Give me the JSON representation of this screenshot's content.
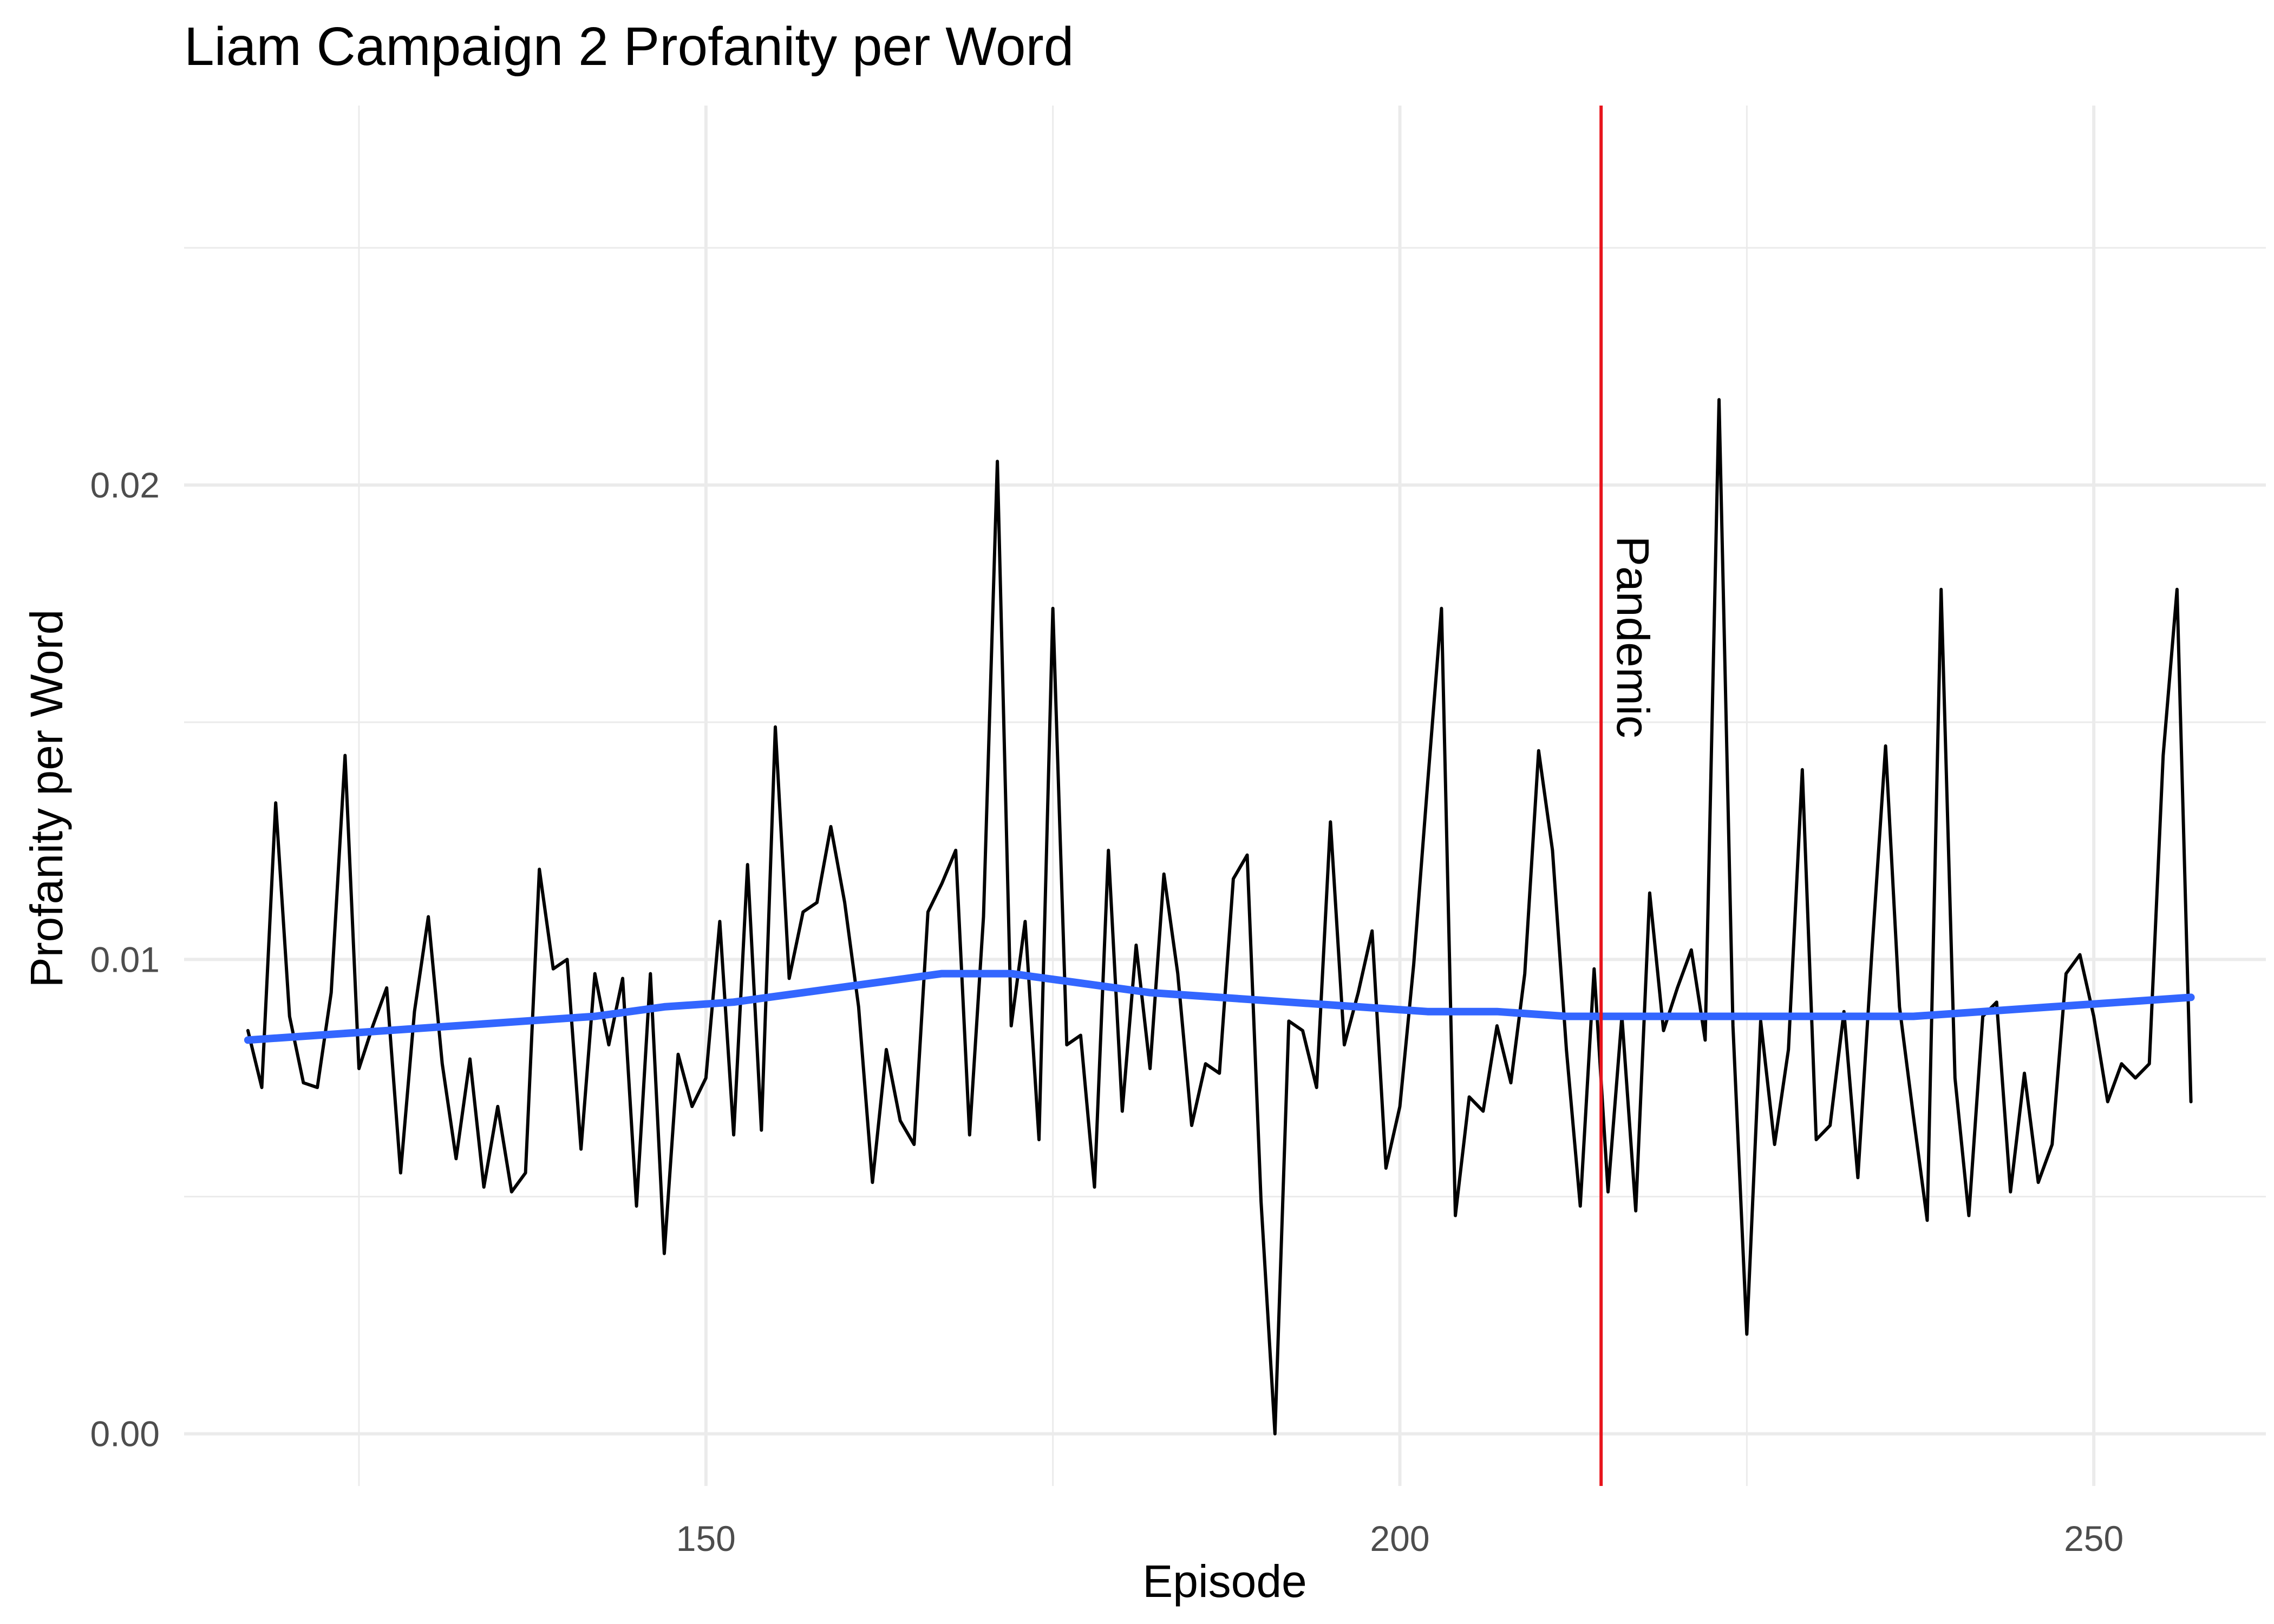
{
  "chart_data": {
    "type": "line",
    "title": "Liam Campaign 2 Profanity per Word",
    "xlabel": "Episode",
    "ylabel": "Profanity per Word",
    "xlim": [
      112.4,
      262.4
    ],
    "ylim": [
      -0.0011,
      0.028
    ],
    "grid": true,
    "x_major_ticks": [
      150,
      200,
      250
    ],
    "x_tick_labels": [
      "150",
      "200",
      "250"
    ],
    "x_minor_ticks": [
      125,
      175,
      225
    ],
    "y_major_ticks": [
      0,
      0.01,
      0.02
    ],
    "y_tick_labels": [
      "0.00",
      "0.01",
      "0.02"
    ],
    "y_minor_ticks": [
      0.005,
      0.015,
      0.025
    ],
    "colors": {
      "series": "#000000",
      "smooth": "#3366ff",
      "vline": "#e8141c",
      "grid": "#ebebeb",
      "tick_text": "#4d4d4d"
    },
    "annotation": {
      "x": 214.5,
      "label": "Pandemic"
    },
    "x": [
      117,
      118,
      119,
      120,
      121,
      122,
      123,
      124,
      125,
      126,
      127,
      128,
      129,
      130,
      131,
      132,
      133,
      134,
      135,
      136,
      137,
      138,
      139,
      140,
      141,
      142,
      143,
      144,
      145,
      146,
      147,
      148,
      149,
      150,
      151,
      152,
      153,
      154,
      155,
      156,
      157,
      158,
      159,
      160,
      161,
      162,
      163,
      164,
      165,
      166,
      167,
      168,
      169,
      170,
      171,
      172,
      173,
      174,
      175,
      176,
      177,
      178,
      179,
      180,
      181,
      182,
      183,
      184,
      185,
      186,
      187,
      188,
      189,
      190,
      191,
      192,
      193,
      194,
      195,
      196,
      197,
      198,
      199,
      200,
      201,
      202,
      203,
      204,
      205,
      206,
      207,
      208,
      209,
      210,
      211,
      212,
      213,
      214,
      215,
      216,
      217,
      218,
      219,
      220,
      221,
      222,
      223,
      224,
      225,
      226,
      227,
      228,
      229,
      230,
      231,
      232,
      233,
      234,
      235,
      236,
      237,
      238,
      239,
      240,
      241,
      242,
      243,
      244,
      245,
      246,
      247,
      248,
      249,
      250,
      251,
      252,
      253,
      254,
      255,
      256,
      257
    ],
    "series": [
      {
        "name": "",
        "values": [
          0.0085,
          0.0073,
          0.0133,
          0.0088,
          0.0074,
          0.0073,
          0.0093,
          0.0143,
          0.0077,
          0.0086,
          0.0094,
          0.0055,
          0.0089,
          0.0109,
          0.0078,
          0.0058,
          0.0079,
          0.0052,
          0.0069,
          0.0051,
          0.0055,
          0.0119,
          0.0098,
          0.01,
          0.006,
          0.0097,
          0.0082,
          0.0096,
          0.0048,
          0.0097,
          0.0038,
          0.008,
          0.0069,
          0.0075,
          0.0108,
          0.0063,
          0.012,
          0.0064,
          0.0149,
          0.0096,
          0.011,
          0.0112,
          0.0128,
          0.0112,
          0.009,
          0.0053,
          0.0081,
          0.0066,
          0.0061,
          0.011,
          0.0116,
          0.0123,
          0.0063,
          0.0109,
          0.0205,
          0.0086,
          0.0108,
          0.0062,
          0.0174,
          0.0082,
          0.0084,
          0.0052,
          0.0123,
          0.0068,
          0.0103,
          0.0077,
          0.0118,
          0.0097,
          0.0065,
          0.0078,
          0.0076,
          0.0117,
          0.0122,
          0.0049,
          0.0,
          0.0087,
          0.0085,
          0.0073,
          0.0129,
          0.0082,
          0.0093,
          0.0106,
          0.0056,
          0.0069,
          0.0099,
          0.0137,
          0.0174,
          0.0046,
          0.0071,
          0.0068,
          0.0086,
          0.0074,
          0.0097,
          0.0144,
          0.0123,
          0.0081,
          0.0048,
          0.0098,
          0.0051,
          0.0088,
          0.0047,
          0.0114,
          0.0085,
          0.0094,
          0.0102,
          0.0083,
          0.0218,
          0.0086,
          0.0021,
          0.0087,
          0.0061,
          0.0081,
          0.014,
          0.0062,
          0.0065,
          0.0089,
          0.0054,
          0.0101,
          0.0145,
          0.009,
          0.0067,
          0.0045,
          0.0178,
          0.0075,
          0.0046,
          0.0088,
          0.0091,
          0.0051,
          0.0076,
          0.0053,
          0.0061,
          0.0097,
          0.0101,
          0.0088,
          0.007,
          0.0078,
          0.0075,
          0.0078,
          0.0143,
          0.0178,
          0.007
        ]
      }
    ],
    "smooth": {
      "x": [
        117,
        122,
        127,
        132,
        137,
        142,
        147,
        152,
        157,
        162,
        167,
        170,
        172,
        177,
        182,
        187,
        192,
        197,
        202,
        207,
        212,
        217,
        222,
        227,
        232,
        237,
        242,
        247,
        252,
        257
      ],
      "values": [
        0.0083,
        0.0084,
        0.0085,
        0.0086,
        0.0087,
        0.0088,
        0.009,
        0.0091,
        0.0093,
        0.0095,
        0.0097,
        0.0097,
        0.0097,
        0.0095,
        0.0093,
        0.0092,
        0.0091,
        0.009,
        0.0089,
        0.0089,
        0.0088,
        0.0088,
        0.0088,
        0.0088,
        0.0088,
        0.0088,
        0.0089,
        0.009,
        0.0091,
        0.0092
      ]
    }
  }
}
